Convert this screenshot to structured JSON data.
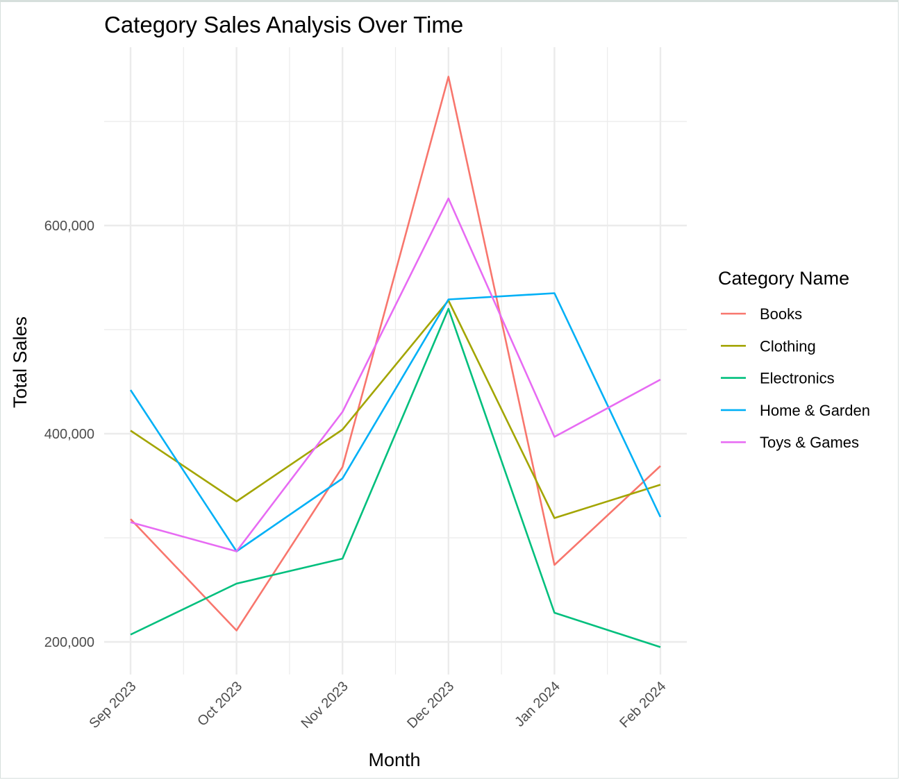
{
  "chart_data": {
    "type": "line",
    "title": "Category Sales Analysis Over Time",
    "xlabel": "Month",
    "ylabel": "Total Sales",
    "categories": [
      "Sep 2023",
      "Oct 2023",
      "Nov 2023",
      "Dec 2023",
      "Jan 2024",
      "Feb 2024"
    ],
    "x": [
      "2023-09",
      "2023-10",
      "2023-11",
      "2023-12",
      "2024-01",
      "2024-02"
    ],
    "ylim": [
      178000,
      745000
    ],
    "y_ticks": [
      200000,
      400000,
      600000
    ],
    "y_tick_labels": [
      "200,000",
      "400,000",
      "600,000"
    ],
    "grid": true,
    "legend": {
      "title": "Category Name",
      "position": "right"
    },
    "series": [
      {
        "name": "Books",
        "color": "#F8766D",
        "values": [
          318000,
          211000,
          368000,
          743000,
          274000,
          369000
        ]
      },
      {
        "name": "Clothing",
        "color": "#A3A500",
        "values": [
          403000,
          335000,
          404000,
          528000,
          319000,
          351000
        ]
      },
      {
        "name": "Electronics",
        "color": "#00BF7D",
        "values": [
          207000,
          256000,
          280000,
          520000,
          228000,
          195000
        ]
      },
      {
        "name": "Home & Garden",
        "color": "#00B0F6",
        "values": [
          442000,
          287000,
          357000,
          529000,
          535000,
          320000
        ]
      },
      {
        "name": "Toys & Games",
        "color": "#E76BF3",
        "values": [
          315000,
          287000,
          421000,
          626000,
          397000,
          452000
        ]
      }
    ]
  }
}
